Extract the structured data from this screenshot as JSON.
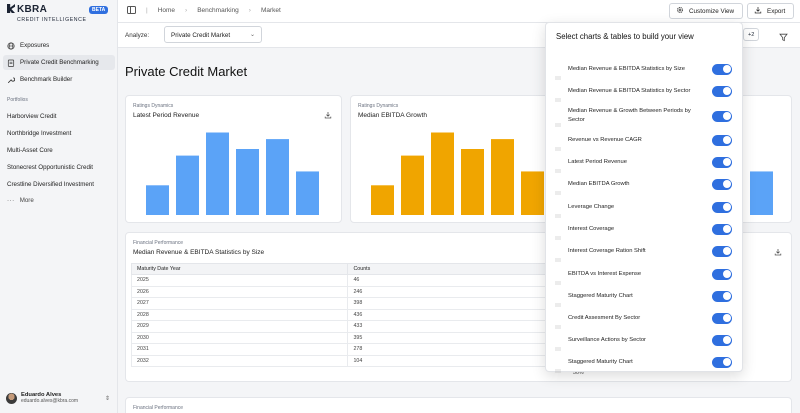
{
  "brand": {
    "name": "KBRA",
    "subtitle": "CREDIT INTELLIGENCE",
    "badge": "BETA"
  },
  "sidebar": {
    "nav": [
      {
        "label": "Exposures",
        "icon": "globe-icon"
      },
      {
        "label": "Private Credit Benchmarking",
        "icon": "clipboard-icon"
      },
      {
        "label": "Benchmark Builder",
        "icon": "wrench-icon"
      }
    ],
    "portfolios_label": "Portfolios",
    "portfolios": [
      "Harborview Credit",
      "Northbridge Investment",
      "Multi-Asset Core",
      "Stonecrest Opportunistic Credit",
      "Crestline Diversified Investment"
    ],
    "more_label": "More",
    "user": {
      "name": "Eduardo Alves",
      "email": "eduardo.alves@kbra.com"
    }
  },
  "topbar": {
    "breadcrumb": [
      "Home",
      "Benchmarking",
      "Market"
    ],
    "customize_label": "Customize View",
    "export_label": "Export"
  },
  "filterbar": {
    "analyze_label": "Analyze:",
    "selected": "Private Credit Market",
    "extra_count": "+2"
  },
  "page": {
    "title": "Private Credit Market"
  },
  "cards": {
    "latest_revenue": {
      "eyebrow": "Ratings Dynamics",
      "title": "Latest Period Revenue",
      "bar_color": "#5ba3f7",
      "values": [
        0.45,
        0.9,
        1.25,
        1.0,
        1.15,
        0.66
      ]
    },
    "ebitda_growth": {
      "eyebrow": "Ratings Dynamics",
      "title": "Median EBITDA Growth",
      "bar_color": "#f0a500",
      "values": [
        0.45,
        0.9,
        1.25,
        1.0,
        1.15,
        0.66
      ]
    },
    "third_bar_color": "#5ba3f7",
    "third_values": [
      0.66
    ],
    "stats_table": {
      "eyebrow": "Financial Performance",
      "title": "Median Revenue & EBITDA Statistics by Size",
      "headers": [
        "Maturity Date Year",
        "Counts"
      ],
      "rows": [
        [
          "2025",
          "46"
        ],
        [
          "2026",
          "246"
        ],
        [
          "2027",
          "398"
        ],
        [
          "2028",
          "436"
        ],
        [
          "2029",
          "433"
        ],
        [
          "2030",
          "395"
        ],
        [
          "2031",
          "278"
        ],
        [
          "2032",
          "104"
        ]
      ],
      "partial_cell": "50%"
    },
    "bottom": {
      "eyebrow": "Financial Performance"
    }
  },
  "popover": {
    "title": "Select charts & tables to build your view",
    "options": [
      {
        "label": "Median Revenue & EBITDA Statistics by Size",
        "on": true
      },
      {
        "label": "Median Revenue & EBITDA Statistics by Sector",
        "on": true
      },
      {
        "label": "Median Revenue & Growth Between Periods by Sector",
        "on": true
      },
      {
        "label": "Revenue vs Revenue CAGR",
        "on": true
      },
      {
        "label": "Latest Period Revenue",
        "on": true
      },
      {
        "label": "Median EBITDA Growth",
        "on": true
      },
      {
        "label": "Leverage Change",
        "on": true
      },
      {
        "label": "Interest Coverage",
        "on": true
      },
      {
        "label": "Interest Coverage Ration Shift",
        "on": true
      },
      {
        "label": "EBITDA vs Interest Expense",
        "on": true
      },
      {
        "label": "Staggered Maturity Chart",
        "on": true
      },
      {
        "label": "Credit Assesment By Sector",
        "on": true
      },
      {
        "label": "Surveillance Actions by Sector",
        "on": true
      },
      {
        "label": "Staggered Maturity Chart",
        "on": true
      }
    ]
  }
}
